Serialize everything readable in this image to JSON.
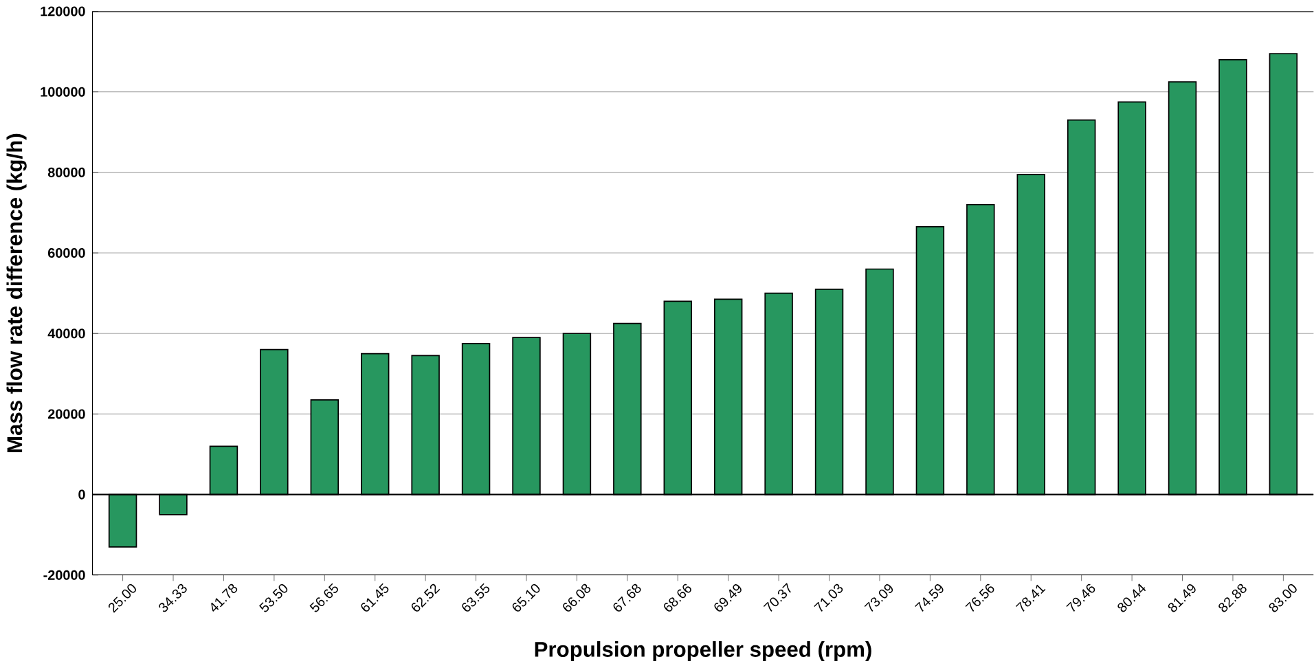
{
  "chart_data": {
    "type": "bar",
    "xlabel": "Propulsion propeller speed (rpm)",
    "ylabel": "Mass flow rate difference (kg/h)",
    "categories": [
      "25.00",
      "34.33",
      "41.78",
      "53.50",
      "56.65",
      "61.45",
      "62.52",
      "63.55",
      "65.10",
      "66.08",
      "67.68",
      "68.66",
      "69.49",
      "70.37",
      "71.03",
      "73.09",
      "74.59",
      "76.56",
      "78.41",
      "79.46",
      "80.44",
      "81.49",
      "82.88",
      "83.00"
    ],
    "values": [
      -13000,
      -5000,
      12000,
      36000,
      23500,
      35000,
      34500,
      37500,
      39000,
      40000,
      42500,
      48000,
      48500,
      50000,
      51000,
      56000,
      66500,
      72000,
      79500,
      93000,
      97500,
      102500,
      108000,
      109500
    ],
    "color": "#27975f",
    "ylim": [
      -20000,
      120000
    ],
    "yticks": [
      -20000,
      0,
      20000,
      40000,
      60000,
      80000,
      100000,
      120000
    ],
    "grid": "y"
  }
}
